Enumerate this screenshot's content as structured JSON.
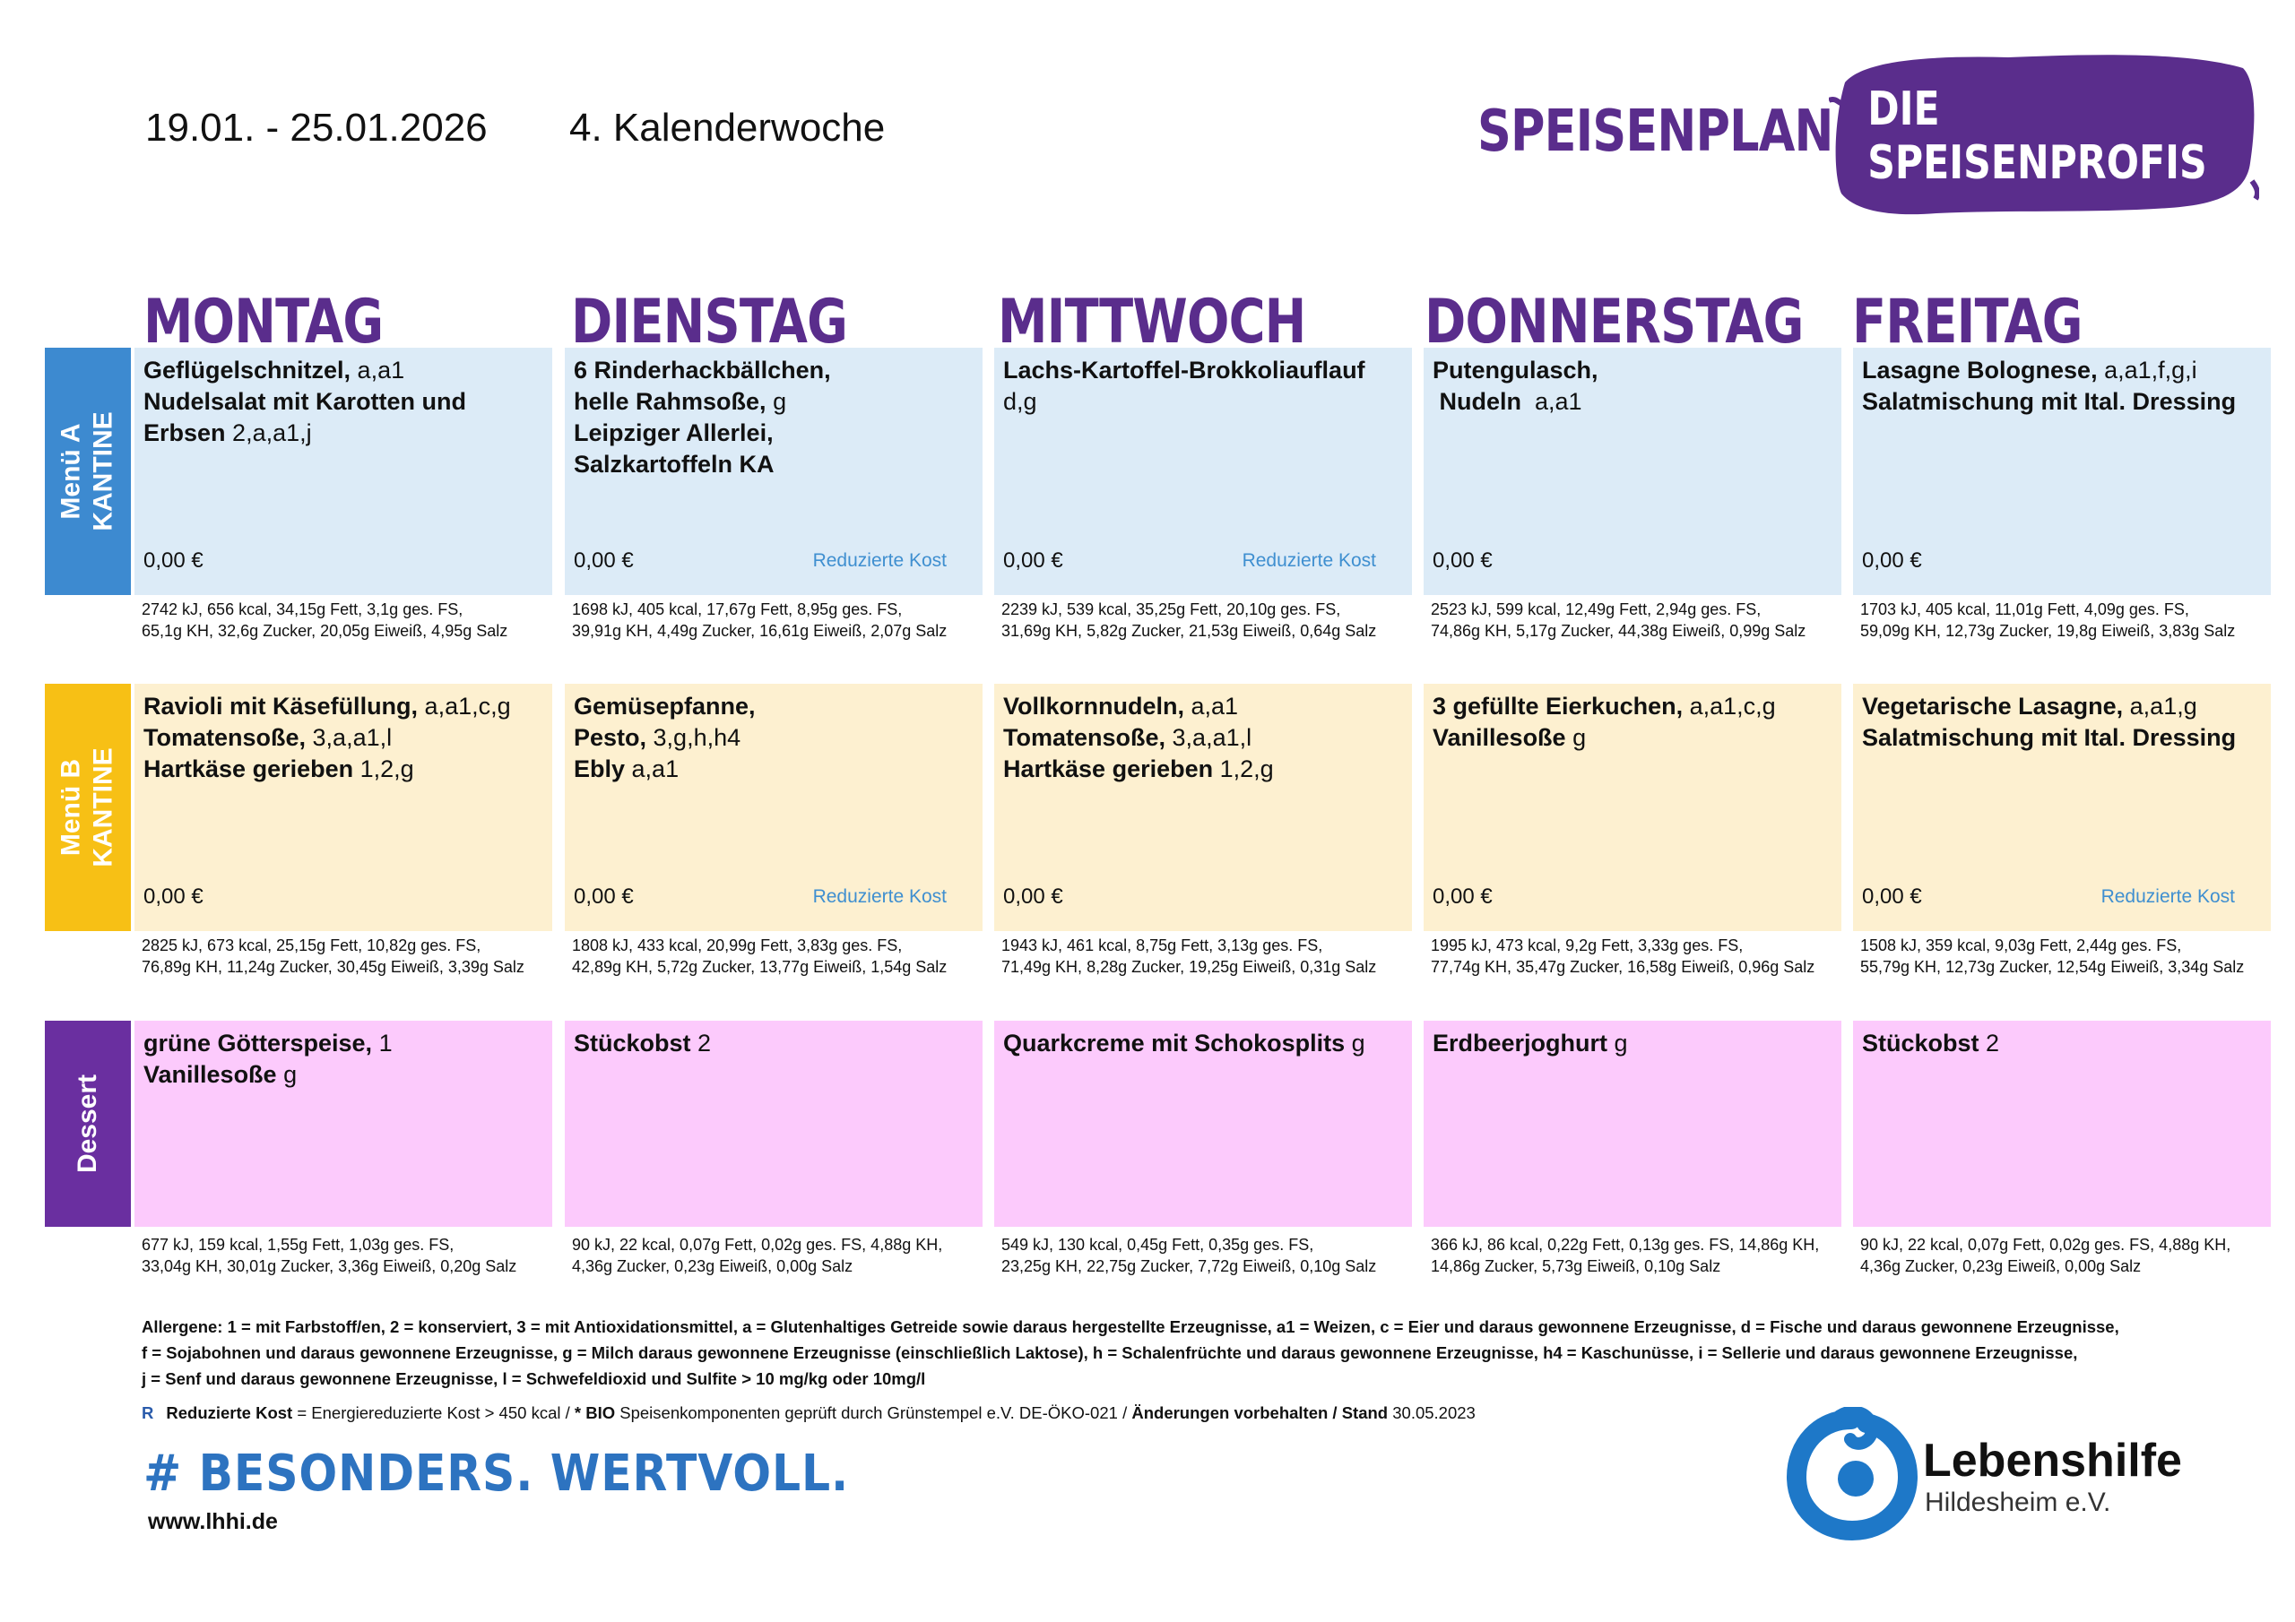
{
  "header": {
    "date_range": "19.01. - 25.01.2026",
    "week": "4. Kalenderwoche",
    "plan_title": "SPEISENPLAN",
    "brand": "DIE SPEISENPROFIS"
  },
  "days": [
    "MONTAG",
    "DIENSTAG",
    "MITTWOCH",
    "DONNERSTAG",
    "FREITAG"
  ],
  "rows": {
    "menu_a": {
      "label_line1": "Menü A",
      "label_line2": "KANTINE"
    },
    "menu_b": {
      "label_line1": "Menü B",
      "label_line2": "KANTINE"
    },
    "dessert": {
      "label_line1": "Dessert"
    }
  },
  "price": "0,00 €",
  "reduced_label": "Reduzierte Kost",
  "menu_a": [
    {
      "lines": [
        {
          "name": "Geflügelschnitzel,",
          "codes": " a,a1"
        },
        {
          "name": "Nudelsalat mit Karotten und",
          "codes": ""
        },
        {
          "name": "Erbsen",
          "codes": " 2,a,a1,j"
        }
      ],
      "nutrition": [
        "2742 kJ, 656 kcal, 34,15g Fett, 3,1g ges. FS,",
        "65,1g KH, 32,6g Zucker, 20,05g Eiweiß, 4,95g Salz"
      ],
      "reduced": false
    },
    {
      "lines": [
        {
          "name": "6 Rinderhackbällchen,",
          "codes": ""
        },
        {
          "name": "helle Rahmsoße,",
          "codes": " g"
        },
        {
          "name": "Leipziger Allerlei,",
          "codes": ""
        },
        {
          "name": "Salzkartoffeln KA",
          "codes": ""
        }
      ],
      "nutrition": [
        "1698 kJ, 405 kcal, 17,67g Fett, 8,95g ges. FS,",
        "39,91g KH, 4,49g Zucker, 16,61g Eiweiß, 2,07g Salz"
      ],
      "reduced": true
    },
    {
      "lines": [
        {
          "name": "Lachs-Kartoffel-Brokkoliauflauf",
          "codes": ""
        },
        {
          "name": "",
          "codes": "d,g"
        }
      ],
      "nutrition": [
        "2239 kJ, 539 kcal, 35,25g Fett, 20,10g ges. FS,",
        "31,69g KH, 5,82g Zucker, 21,53g Eiweiß, 0,64g Salz"
      ],
      "reduced": true
    },
    {
      "lines": [
        {
          "name": "Putengulasch,",
          "codes": ""
        },
        {
          "name": " Nudeln",
          "codes": "  a,a1"
        }
      ],
      "nutrition": [
        "2523 kJ, 599 kcal, 12,49g Fett, 2,94g ges. FS,",
        "74,86g KH, 5,17g Zucker, 44,38g Eiweiß, 0,99g Salz"
      ],
      "reduced": false
    },
    {
      "lines": [
        {
          "name": "Lasagne Bolognese,",
          "codes": " a,a1,f,g,i"
        },
        {
          "name": "Salatmischung mit Ital. Dressing",
          "codes": ""
        }
      ],
      "nutrition": [
        "1703 kJ, 405 kcal, 11,01g Fett, 4,09g ges. FS,",
        "59,09g KH, 12,73g Zucker, 19,8g Eiweiß, 3,83g Salz"
      ],
      "reduced": false
    }
  ],
  "menu_b": [
    {
      "lines": [
        {
          "name": "Ravioli mit Käsefüllung,",
          "codes": " a,a1,c,g"
        },
        {
          "name": "Tomatensoße,",
          "codes": " 3,a,a1,l"
        },
        {
          "name": "Hartkäse gerieben",
          "codes": " 1,2,g"
        }
      ],
      "nutrition": [
        "2825 kJ, 673 kcal, 25,15g Fett, 10,82g ges. FS,",
        "76,89g KH, 11,24g Zucker, 30,45g Eiweiß, 3,39g Salz"
      ],
      "reduced": false
    },
    {
      "lines": [
        {
          "name": "Gemüsepfanne,",
          "codes": ""
        },
        {
          "name": "Pesto,",
          "codes": " 3,g,h,h4"
        },
        {
          "name": "Ebly",
          "codes": " a,a1"
        }
      ],
      "nutrition": [
        "1808 kJ, 433 kcal, 20,99g Fett, 3,83g ges. FS,",
        "42,89g KH, 5,72g Zucker, 13,77g Eiweiß, 1,54g Salz"
      ],
      "reduced": true
    },
    {
      "lines": [
        {
          "name": "Vollkornnudeln,",
          "codes": " a,a1"
        },
        {
          "name": "Tomatensoße,",
          "codes": " 3,a,a1,l"
        },
        {
          "name": "Hartkäse gerieben",
          "codes": " 1,2,g"
        }
      ],
      "nutrition": [
        "1943 kJ, 461 kcal, 8,75g Fett, 3,13g ges. FS,",
        "71,49g KH, 8,28g Zucker, 19,25g Eiweiß, 0,31g Salz"
      ],
      "reduced": false
    },
    {
      "lines": [
        {
          "name": "3 gefüllte Eierkuchen,",
          "codes": " a,a1,c,g"
        },
        {
          "name": "Vanillesoße",
          "codes": " g"
        }
      ],
      "nutrition": [
        "1995 kJ, 473 kcal, 9,2g Fett, 3,33g ges. FS,",
        "77,74g KH, 35,47g Zucker, 16,58g Eiweiß, 0,96g Salz"
      ],
      "reduced": false
    },
    {
      "lines": [
        {
          "name": "Vegetarische Lasagne,",
          "codes": " a,a1,g"
        },
        {
          "name": "Salatmischung mit Ital. Dressing",
          "codes": ""
        }
      ],
      "nutrition": [
        "1508 kJ, 359 kcal, 9,03g Fett, 2,44g ges. FS,",
        "55,79g KH, 12,73g Zucker, 12,54g Eiweiß, 3,34g Salz"
      ],
      "reduced": true
    }
  ],
  "dessert": [
    {
      "lines": [
        {
          "name": "grüne Götterspeise,",
          "codes": " 1"
        },
        {
          "name": "Vanillesoße",
          "codes": " g"
        }
      ],
      "nutrition": [
        "677 kJ, 159 kcal, 1,55g Fett, 1,03g ges. FS,",
        "33,04g KH, 30,01g Zucker, 3,36g Eiweiß, 0,20g Salz"
      ]
    },
    {
      "lines": [
        {
          "name": "Stückobst",
          "codes": " 2"
        }
      ],
      "nutrition": [
        "90 kJ, 22 kcal, 0,07g Fett, 0,02g ges. FS, 4,88g KH,",
        "4,36g Zucker, 0,23g Eiweiß, 0,00g Salz"
      ]
    },
    {
      "lines": [
        {
          "name": "Quarkcreme mit Schokosplits",
          "codes": " g"
        }
      ],
      "nutrition": [
        "549 kJ, 130 kcal, 0,45g Fett, 0,35g ges. FS,",
        "23,25g KH, 22,75g Zucker, 7,72g Eiweiß, 0,10g Salz"
      ]
    },
    {
      "lines": [
        {
          "name": "Erdbeerjoghurt",
          "codes": " g"
        }
      ],
      "nutrition": [
        "366 kJ, 86 kcal, 0,22g Fett, 0,13g ges. FS, 14,86g KH,",
        "14,86g Zucker, 5,73g Eiweiß, 0,10g Salz"
      ]
    },
    {
      "lines": [
        {
          "name": "Stückobst",
          "codes": " 2"
        }
      ],
      "nutrition": [
        "90 kJ, 22 kcal, 0,07g Fett, 0,02g ges. FS, 4,88g KH,",
        "4,36g Zucker, 0,23g Eiweiß, 0,00g Salz"
      ]
    }
  ],
  "footer": {
    "allergens": [
      "Allergene: 1 = mit Farbstoff/en, 2 = konserviert, 3 = mit Antioxidationsmittel, a = Glutenhaltiges Getreide sowie daraus hergestellte Erzeugnisse, a1 = Weizen, c = Eier und daraus gewonnene Erzeugnisse, d = Fische und daraus gewonnene Erzeugnisse,",
      "f = Sojabohnen und daraus gewonnene Erzeugnisse, g = Milch daraus gewonnene Erzeugnisse (einschließlich Laktose), h = Schalenfrüchte und daraus gewonnene Erzeugnisse, h4 = Kaschunüsse, i = Sellerie und daraus gewonnene Erzeugnisse,",
      "j = Senf und daraus gewonnene Erzeugnisse, l = Schwefeldioxid und Sulfite > 10 mg/kg oder 10mg/l"
    ],
    "legend_r": "R",
    "legend_bold1": "Reduzierte Kost",
    "legend_text1": " = Energiereduzierte Kost > 450 kcal / ",
    "legend_bold2": "* BIO",
    "legend_text2": " Speisenkomponenten geprüft durch Grünstempel e.V. DE-ÖKO-021 / ",
    "legend_bold3": "Änderungen vorbehalten / Stand",
    "legend_text3": " 30.05.2023",
    "slogan": "# BESONDERS. WERTVOLL.",
    "url": "www.lhhi.de",
    "logo_name": "Lebenshilfe",
    "logo_sub": "Hildesheim e.V."
  },
  "colors": {
    "purple": "#5a2d8c",
    "menu_a_label": "#3d8ad0",
    "menu_b_label": "#f7c015",
    "dessert_label": "#6a2fa0",
    "menu_a_bg": "#dcebf7",
    "menu_b_bg": "#fdf0d0",
    "dessert_bg": "#fccafc",
    "reduced_blue": "#3f8fd0",
    "slogan_blue": "#2d73c0"
  }
}
